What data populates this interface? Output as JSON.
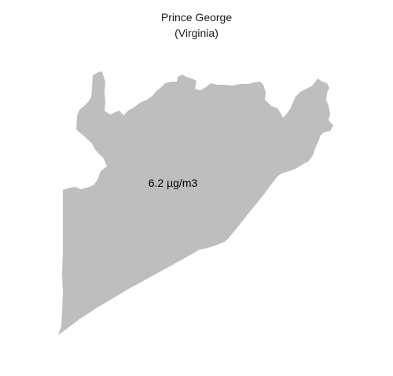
{
  "map": {
    "title": "Prince George",
    "subtitle": "(Virginia)",
    "region": {
      "value_label": "6.2 µg/m3",
      "fill_color": "#bebebe"
    },
    "background_color": "#ffffff"
  }
}
